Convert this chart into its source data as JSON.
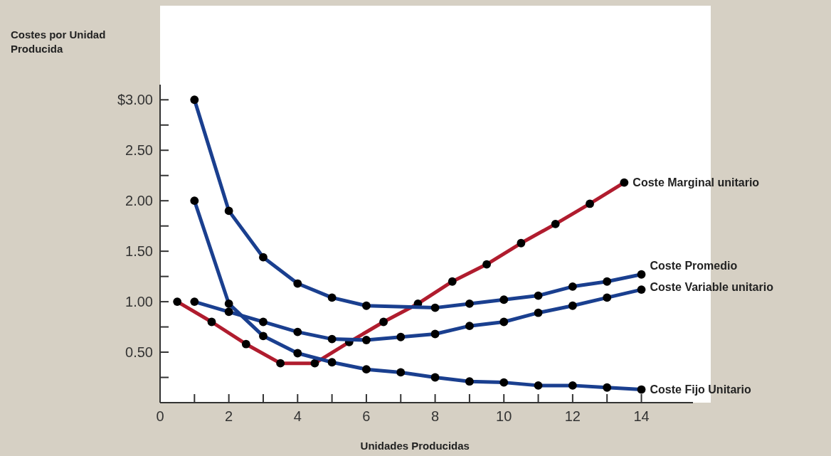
{
  "chart_data": {
    "type": "line",
    "ylabel": "Costes por Unidad Producida",
    "xlabel": "Unidades Producidas",
    "xlim": [
      0,
      15.5
    ],
    "xticks": [
      0,
      {
        "value": 1,
        "label": null
      },
      2,
      {
        "value": 3,
        "label": null
      },
      4,
      {
        "value": 5,
        "label": null
      },
      6,
      {
        "value": 7,
        "label": null
      },
      8,
      {
        "value": 9,
        "label": null
      },
      10,
      {
        "value": 11,
        "label": null
      },
      12,
      {
        "value": 13,
        "label": null
      },
      14
    ],
    "ylim": [
      0,
      3.15
    ],
    "yticks": [
      {
        "value": 0.25,
        "label": null
      },
      {
        "value": 0.5,
        "label": "0.50"
      },
      {
        "value": 0.75,
        "label": null
      },
      {
        "value": 1,
        "label": "1.00"
      },
      {
        "value": 1.25,
        "label": null
      },
      {
        "value": 1.5,
        "label": "1.50"
      },
      {
        "value": 1.75,
        "label": null
      },
      {
        "value": 2,
        "label": "2.00"
      },
      {
        "value": 2.25,
        "label": null
      },
      {
        "value": 2.5,
        "label": "2.50"
      },
      {
        "value": 2.75,
        "label": null
      },
      {
        "value": 3,
        "label": "$3.00"
      }
    ],
    "marker": "circle",
    "line_style": "solid",
    "series": [
      {
        "name": "Coste Marginal unitario",
        "color": "#b01c2e",
        "x": [
          0.5,
          1.5,
          2.5,
          3.5,
          4.5,
          5.5,
          6.5,
          7.5,
          8.5,
          9.5,
          10.5,
          11.5,
          12.5,
          13.5
        ],
        "values": [
          1.0,
          0.8,
          0.58,
          0.39,
          0.39,
          0.6,
          0.8,
          0.98,
          1.2,
          1.37,
          1.58,
          1.77,
          1.97,
          2.18
        ]
      },
      {
        "name": "Coste Promedio",
        "color": "#1a3f8f",
        "x": [
          1,
          2,
          3,
          4,
          5,
          6,
          8,
          9,
          10,
          11,
          12,
          13,
          14
        ],
        "values": [
          3.0,
          1.9,
          1.44,
          1.18,
          1.04,
          0.96,
          0.94,
          0.98,
          1.02,
          1.06,
          1.15,
          1.2,
          1.27
        ]
      },
      {
        "name": "Coste Variable unitario",
        "color": "#1a3f8f",
        "x": [
          1,
          2,
          3,
          4,
          5,
          6,
          7,
          8,
          9,
          10,
          11,
          12,
          13,
          14
        ],
        "values": [
          1.0,
          0.9,
          0.8,
          0.7,
          0.63,
          0.62,
          0.65,
          0.68,
          0.76,
          0.8,
          0.89,
          0.96,
          1.04,
          1.12
        ]
      },
      {
        "name": "Coste Fijo Unitario",
        "color": "#1a3f8f",
        "x": [
          1,
          2,
          3,
          4,
          5,
          6,
          7,
          8,
          9,
          10,
          11,
          12,
          13,
          14
        ],
        "values": [
          2.0,
          0.98,
          0.66,
          0.49,
          0.4,
          0.33,
          0.3,
          0.25,
          0.21,
          0.2,
          0.17,
          0.17,
          0.15,
          0.13
        ]
      }
    ]
  }
}
